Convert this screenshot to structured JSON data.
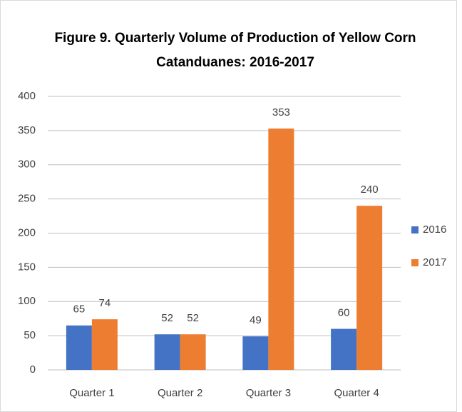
{
  "chart_data": {
    "type": "bar",
    "title": [
      "Figure 9. Quarterly Volume of Production of Yellow Corn",
      "Catanduanes: 2016-2017"
    ],
    "categories": [
      "Quarter 1",
      "Quarter 2",
      "Quarter 3",
      "Quarter 4"
    ],
    "series": [
      {
        "name": "2016",
        "color": "#4472c4",
        "values": [
          65,
          52,
          49,
          60
        ]
      },
      {
        "name": "2017",
        "color": "#ed7d31",
        "values": [
          74,
          52,
          353,
          240
        ]
      }
    ],
    "ylim": [
      0,
      400
    ],
    "yticks": [
      0,
      50,
      100,
      150,
      200,
      250,
      300,
      350,
      400
    ],
    "grid": true,
    "legend": "right",
    "data_labels": true
  }
}
